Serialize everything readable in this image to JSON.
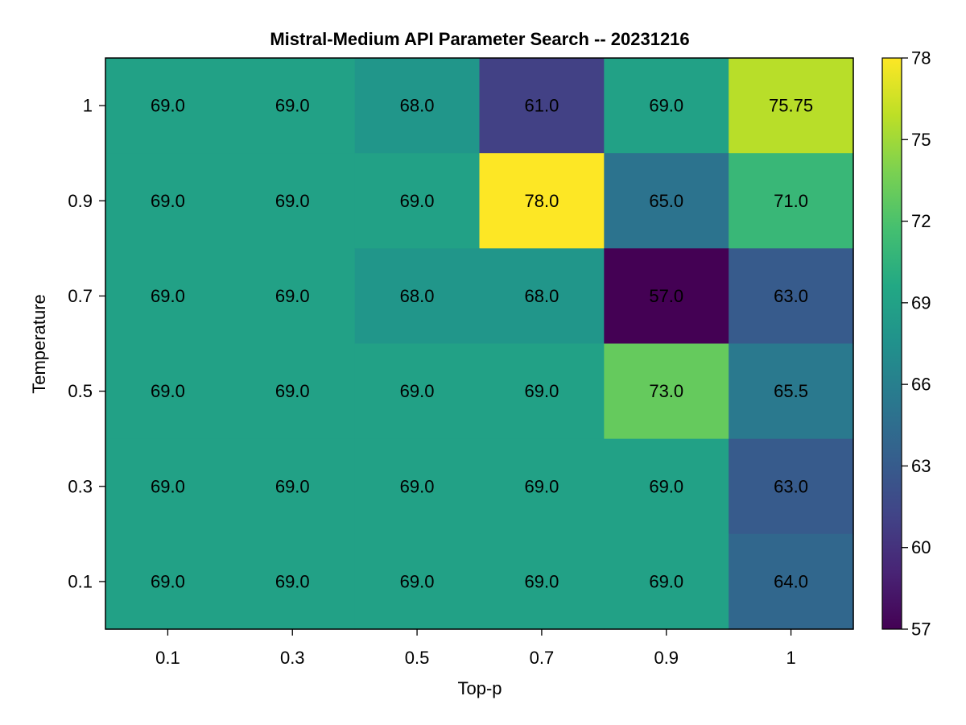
{
  "chart_data": {
    "type": "heatmap",
    "title": "Mistral-Medium API Parameter Search -- 20231216",
    "xlabel": "Top-p",
    "ylabel": "Temperature",
    "x": [
      "0.1",
      "0.3",
      "0.5",
      "0.7",
      "0.9",
      "1"
    ],
    "y": [
      "1",
      "0.9",
      "0.7",
      "0.5",
      "0.3",
      "0.1"
    ],
    "values": [
      [
        69.0,
        69.0,
        68.0,
        61.0,
        69.0,
        75.75
      ],
      [
        69.0,
        69.0,
        69.0,
        78.0,
        65.0,
        71.0
      ],
      [
        69.0,
        69.0,
        68.0,
        68.0,
        57.0,
        63.0
      ],
      [
        69.0,
        69.0,
        69.0,
        69.0,
        73.0,
        65.5
      ],
      [
        69.0,
        69.0,
        69.0,
        69.0,
        69.0,
        63.0
      ],
      [
        69.0,
        69.0,
        69.0,
        69.0,
        69.0,
        64.0
      ]
    ],
    "labels": [
      [
        "69.0",
        "69.0",
        "68.0",
        "61.0",
        "69.0",
        "75.75"
      ],
      [
        "69.0",
        "69.0",
        "69.0",
        "78.0",
        "65.0",
        "71.0"
      ],
      [
        "69.0",
        "69.0",
        "68.0",
        "68.0",
        "57.0",
        "63.0"
      ],
      [
        "69.0",
        "69.0",
        "69.0",
        "69.0",
        "73.0",
        "65.5"
      ],
      [
        "69.0",
        "69.0",
        "69.0",
        "69.0",
        "69.0",
        "63.0"
      ],
      [
        "69.0",
        "69.0",
        "69.0",
        "69.0",
        "69.0",
        "64.0"
      ]
    ],
    "colorscale": "viridis",
    "zlim": [
      57,
      78
    ],
    "colorbar_ticks": [
      "57",
      "60",
      "63",
      "66",
      "69",
      "72",
      "75",
      "78"
    ],
    "grid": false,
    "legend": "colorbar-right"
  }
}
